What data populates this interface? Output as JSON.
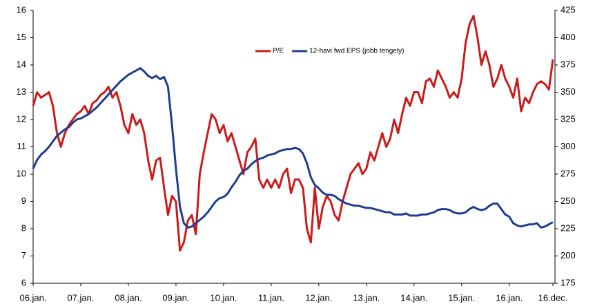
{
  "chart_data": {
    "type": "line",
    "categories": [
      "06.jan.",
      null,
      null,
      null,
      null,
      null,
      null,
      null,
      null,
      null,
      null,
      null,
      "07.jan.",
      null,
      null,
      null,
      null,
      null,
      null,
      null,
      null,
      null,
      null,
      null,
      "08.jan.",
      null,
      null,
      null,
      null,
      null,
      null,
      null,
      null,
      null,
      null,
      null,
      "09.jan.",
      null,
      null,
      null,
      null,
      null,
      null,
      null,
      null,
      null,
      null,
      null,
      "10.jan.",
      null,
      null,
      null,
      null,
      null,
      null,
      null,
      null,
      null,
      null,
      null,
      "11.jan.",
      null,
      null,
      null,
      null,
      null,
      null,
      null,
      null,
      null,
      null,
      null,
      "12.jan.",
      null,
      null,
      null,
      null,
      null,
      null,
      null,
      null,
      null,
      null,
      null,
      "13.jan.",
      null,
      null,
      null,
      null,
      null,
      null,
      null,
      null,
      null,
      null,
      null,
      "14.jan.",
      null,
      null,
      null,
      null,
      null,
      null,
      null,
      null,
      null,
      null,
      null,
      "15.jan.",
      null,
      null,
      null,
      null,
      null,
      null,
      null,
      null,
      null,
      null,
      null,
      "16.jan.",
      null,
      null,
      null,
      null,
      null,
      null,
      null,
      null,
      null,
      null,
      "16.dec."
    ],
    "series": [
      {
        "name": "P/E",
        "color": "#cc1a1a",
        "values": [
          12.5,
          13,
          12.8,
          12.9,
          13,
          12.5,
          11.5,
          11,
          11.5,
          11.8,
          12,
          12.2,
          12.3,
          12.5,
          12.2,
          12.6,
          12.7,
          12.9,
          13,
          13.2,
          12.8,
          13,
          12.5,
          11.8,
          11.5,
          12.2,
          11.8,
          12.0,
          11.5,
          10.5,
          9.8,
          10.5,
          10.6,
          9.5,
          8.5,
          9.2,
          9.0,
          7.2,
          7.5,
          8.3,
          8.5,
          7.8,
          10.0,
          10.8,
          11.5,
          12.2,
          12.0,
          11.5,
          11.8,
          11.2,
          11.5,
          11.0,
          10.5,
          10.0,
          10.8,
          11.0,
          11.3,
          9.8,
          9.5,
          9.8,
          9.5,
          9.8,
          9.5,
          10.0,
          10.2,
          9.3,
          9.8,
          9.8,
          9.5,
          8.0,
          7.5,
          9.5,
          8.0,
          8.8,
          9.2,
          9.0,
          8.5,
          8.3,
          9.0,
          9.5,
          10.0,
          10.2,
          10.4,
          10.0,
          10.2,
          10.8,
          10.5,
          11.0,
          11.5,
          11.0,
          11.3,
          12.0,
          11.5,
          12.2,
          12.8,
          12.5,
          13.0,
          13.0,
          12.6,
          13.4,
          13.5,
          13.2,
          13.8,
          13.5,
          13.2,
          12.8,
          13.0,
          12.8,
          13.5,
          14.8,
          15.5,
          15.8,
          15.0,
          14.0,
          14.5,
          14.0,
          13.2,
          13.5,
          14.0,
          13.5,
          13.2,
          12.8,
          13.5,
          12.3,
          12.8,
          12.6,
          13.0,
          13.3,
          13.4,
          13.3,
          13.1,
          14.2
        ]
      },
      {
        "name": "12-havi fwd EPS (jobb tengely)",
        "color": "#1f3d8f",
        "axis": "y2",
        "values": [
          280,
          288,
          293,
          296,
          300,
          305,
          310,
          313,
          316,
          318,
          322,
          325,
          326,
          328,
          330,
          333,
          336,
          340,
          344,
          348,
          352,
          356,
          360,
          363,
          366,
          368,
          370,
          372,
          369,
          365,
          363,
          365,
          362,
          364,
          355,
          320,
          280,
          245,
          230,
          226,
          227,
          230,
          233,
          236,
          240,
          245,
          250,
          253,
          254,
          257,
          263,
          268,
          274,
          278,
          280,
          284,
          287,
          289,
          290,
          292,
          293,
          294,
          296,
          297,
          298,
          298,
          299,
          298,
          294,
          285,
          272,
          265,
          262,
          258,
          256,
          256,
          255,
          252,
          250,
          248,
          247,
          246,
          246,
          245,
          244,
          244,
          243,
          242,
          241,
          240,
          240,
          238,
          238,
          238,
          239,
          237,
          237,
          237,
          238,
          238,
          239,
          240,
          242,
          243,
          243,
          242,
          240,
          239,
          239,
          240,
          243,
          245,
          243,
          242,
          243,
          246,
          248,
          248,
          243,
          238,
          236,
          230,
          228,
          227,
          228,
          229,
          229,
          230,
          226,
          227,
          229,
          231
        ]
      }
    ],
    "ylim": [
      6,
      16
    ],
    "yticks": [
      6,
      7,
      8,
      9,
      10,
      11,
      12,
      13,
      14,
      15,
      16
    ],
    "y2lim": [
      175,
      425
    ],
    "y2ticks": [
      175,
      200,
      225,
      250,
      275,
      300,
      325,
      350,
      375,
      400,
      425
    ],
    "grid": false,
    "legend": "top"
  }
}
